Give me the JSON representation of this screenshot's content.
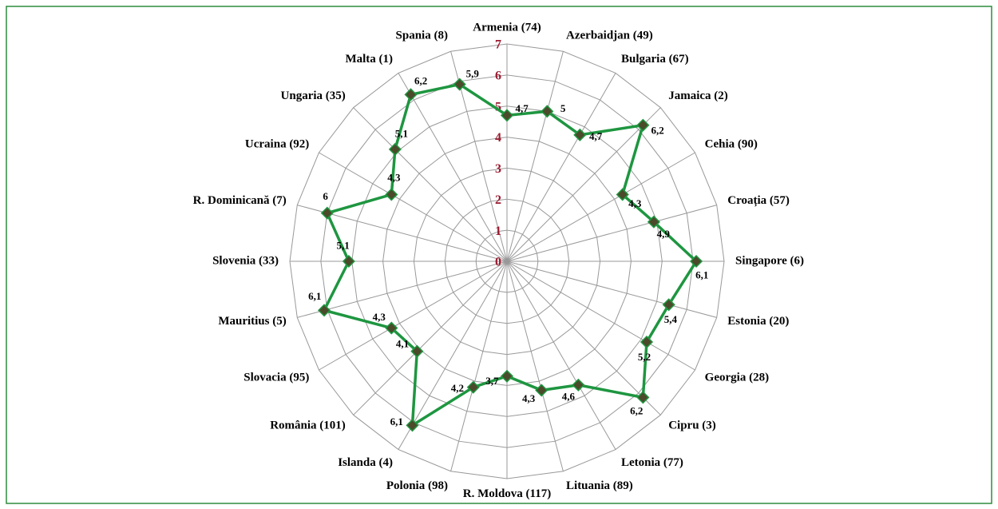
{
  "chart_data": {
    "type": "radar",
    "categories": [
      "Armenia (74)",
      "Azerbaidjan (49)",
      "Bulgaria (67)",
      "Jamaica (2)",
      "Cehia (90)",
      "Croația (57)",
      "Singapore (6)",
      "Estonia (20)",
      "Georgia (28)",
      "Cipru (3)",
      "Letonia (77)",
      "Lituania (89)",
      "R. Moldova (117)",
      "Polonia (98)",
      "Islanda (4)",
      "România (101)",
      "Slovacia (95)",
      "Mauritius (5)",
      "Slovenia (33)",
      "R. Dominicană (7)",
      "Ucraina (92)",
      "Ungaria (35)",
      "Malta (1)",
      "Spania (8)"
    ],
    "values": [
      4.7,
      5,
      4.7,
      6.2,
      4.3,
      4.9,
      6.1,
      5.4,
      5.2,
      6.2,
      4.6,
      4.3,
      3.7,
      4.2,
      6.1,
      4.1,
      4.3,
      6.1,
      5.1,
      6,
      4.3,
      5.1,
      6.2,
      5.9
    ],
    "value_labels": [
      "4,7",
      "5",
      "4,7",
      "6,2",
      "4,3",
      "4,9",
      "6,1",
      "5,4",
      "5,2",
      "6,2",
      "4,6",
      "4,3",
      "3,7",
      "4,2",
      "6,1",
      "4,1",
      "4,3",
      "6,1",
      "5,1",
      "6",
      "4,3",
      "5,1",
      "6,2",
      "5,9"
    ],
    "color": "#1e9640",
    "marker_color": "#4b4a2a",
    "ylim": [
      0,
      7
    ],
    "yticks": [
      0,
      1,
      2,
      3,
      4,
      5,
      6,
      7
    ],
    "grid": true
  }
}
